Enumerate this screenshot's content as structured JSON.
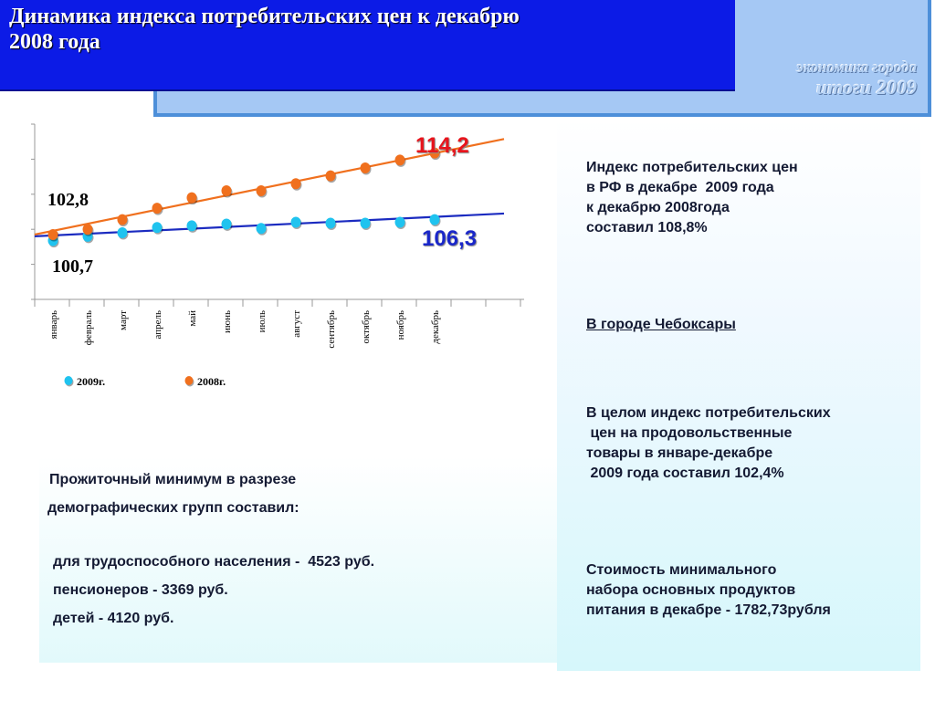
{
  "header": {
    "title": "Динамика индекса потребительских цен к декабрю\n 2008 года",
    "brand_line1": "экономика города",
    "brand_line2": "итоги  2009"
  },
  "chart_data": {
    "type": "scatter",
    "categories": [
      "январь",
      "февраль",
      "март",
      "апрель",
      "май",
      "июнь",
      "июль",
      "август",
      "сентябрь",
      "октябрь",
      "ноябрь",
      "декабрь"
    ],
    "series": [
      {
        "name": "2009г.",
        "color": "#1fc3ef",
        "line_color": "#1b2bc0",
        "values": [
          100.7,
          101.2,
          101.6,
          102.2,
          102.4,
          102.6,
          102.1,
          102.8,
          102.7,
          102.7,
          102.8,
          103.1
        ]
      },
      {
        "name": "2008г.",
        "color": "#f0701e",
        "line_color": "#f0701e",
        "values": [
          101.4,
          102.0,
          103.1,
          104.4,
          105.6,
          106.4,
          106.4,
          107.2,
          108.1,
          109.0,
          109.9,
          110.7
        ]
      }
    ],
    "trendlines": [
      {
        "series": "2009г.",
        "start": 101.2,
        "end": 103.8
      },
      {
        "series": "2008г.",
        "start": 101.4,
        "end": 112.3
      }
    ],
    "annotations": [
      {
        "text": "114,2",
        "color": "#e8141c"
      },
      {
        "text": "106,3",
        "color": "#1a27c9"
      },
      {
        "text": "102,8",
        "color": "#000000"
      },
      {
        "text": "100,7",
        "color": "#000000"
      }
    ],
    "ylim": [
      94,
      114
    ],
    "legend_position": "bottom",
    "grid": false
  },
  "right_text": {
    "p1": "Индекс потребительских цен\nв РФ в декабре  2009 года\nк декабрю 2008года\nсоставил 108,8%",
    "p2": "В городе Чебоксары",
    "p3": "В целом индекс потребительских\n цен на продовольственные\nтовары в январе-декабре\n 2009 года составил 102,4%",
    "p4": "Стоимость минимального\nнабора основных продуктов\nпитания в декабре - 1782,73рубля"
  },
  "left_text": {
    "intro1": "Прожиточный минимум в разрезе",
    "intro2": "демографических групп составил:",
    "item1": "для трудоспособного населения -  4523 руб.",
    "item2": "пенсионеров - 3369 руб.",
    "item3": "детей - 4120 руб."
  }
}
